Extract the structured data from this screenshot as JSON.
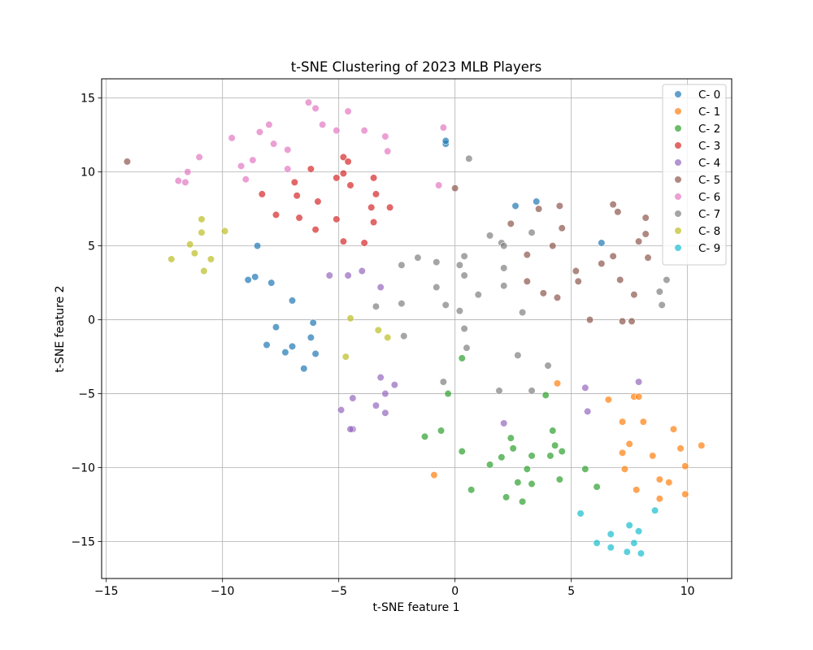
{
  "chart_data": {
    "type": "scatter",
    "title": "t-SNE Clustering of 2023 MLB Players",
    "xlabel": "t-SNE feature 1",
    "ylabel": "t-SNE feature 2",
    "xlim": [
      -15.2,
      11.9
    ],
    "ylim": [
      -17.5,
      16.3
    ],
    "xticks": [
      -15,
      -10,
      -5,
      0,
      5,
      10
    ],
    "yticks": [
      -15,
      -10,
      -5,
      0,
      5,
      10,
      15
    ],
    "grid": true,
    "legend_position": "top-right",
    "series": [
      {
        "name": "C- 0",
        "color": "#1f77b4",
        "points": [
          [
            -0.4,
            11.9
          ],
          [
            -0.4,
            12.1
          ],
          [
            2.6,
            7.7
          ],
          [
            3.5,
            8.0
          ],
          [
            6.3,
            5.2
          ],
          [
            -8.5,
            5.0
          ],
          [
            -8.9,
            2.7
          ],
          [
            -8.6,
            2.9
          ],
          [
            -7.9,
            2.5
          ],
          [
            -7.0,
            1.3
          ],
          [
            -7.7,
            -0.5
          ],
          [
            -6.1,
            -0.2
          ],
          [
            -8.1,
            -1.7
          ],
          [
            -7.0,
            -1.8
          ],
          [
            -7.3,
            -2.2
          ],
          [
            -6.2,
            -1.2
          ],
          [
            -6.0,
            -2.3
          ],
          [
            -6.5,
            -3.3
          ]
        ]
      },
      {
        "name": "C- 1",
        "color": "#ff7f0e",
        "points": [
          [
            4.4,
            -4.3
          ],
          [
            6.6,
            -5.4
          ],
          [
            7.7,
            -5.2
          ],
          [
            7.9,
            -5.2
          ],
          [
            7.2,
            -6.9
          ],
          [
            8.1,
            -6.9
          ],
          [
            9.4,
            -7.4
          ],
          [
            7.5,
            -8.4
          ],
          [
            7.2,
            -9.0
          ],
          [
            8.5,
            -9.2
          ],
          [
            9.7,
            -8.7
          ],
          [
            10.6,
            -8.5
          ],
          [
            7.3,
            -10.1
          ],
          [
            9.9,
            -9.9
          ],
          [
            8.8,
            -10.8
          ],
          [
            9.2,
            -11.0
          ],
          [
            7.8,
            -11.5
          ],
          [
            8.8,
            -12.1
          ],
          [
            9.9,
            -11.8
          ],
          [
            -0.9,
            -10.5
          ]
        ]
      },
      {
        "name": "C- 2",
        "color": "#2ca02c",
        "points": [
          [
            0.3,
            -2.6
          ],
          [
            -0.3,
            -5.0
          ],
          [
            3.9,
            -5.1
          ],
          [
            -1.3,
            -7.9
          ],
          [
            -0.6,
            -7.5
          ],
          [
            2.4,
            -8.0
          ],
          [
            2.5,
            -8.7
          ],
          [
            4.2,
            -7.5
          ],
          [
            4.3,
            -8.5
          ],
          [
            4.6,
            -8.9
          ],
          [
            0.3,
            -8.9
          ],
          [
            2.0,
            -9.3
          ],
          [
            3.3,
            -9.2
          ],
          [
            4.1,
            -9.2
          ],
          [
            1.5,
            -9.8
          ],
          [
            3.1,
            -10.1
          ],
          [
            5.6,
            -10.1
          ],
          [
            2.7,
            -11.0
          ],
          [
            3.3,
            -11.1
          ],
          [
            4.5,
            -10.8
          ],
          [
            0.7,
            -11.5
          ],
          [
            2.2,
            -12.0
          ],
          [
            2.9,
            -12.3
          ],
          [
            6.1,
            -11.3
          ]
        ]
      },
      {
        "name": "C- 3",
        "color": "#d62728",
        "points": [
          [
            -4.8,
            11.0
          ],
          [
            -4.6,
            10.7
          ],
          [
            -6.2,
            10.2
          ],
          [
            -4.8,
            9.9
          ],
          [
            -5.1,
            9.6
          ],
          [
            -3.5,
            9.6
          ],
          [
            -6.9,
            9.3
          ],
          [
            -4.5,
            9.1
          ],
          [
            -8.3,
            8.5
          ],
          [
            -6.8,
            8.4
          ],
          [
            -3.4,
            8.5
          ],
          [
            -5.9,
            8.0
          ],
          [
            -3.6,
            7.6
          ],
          [
            -2.8,
            7.6
          ],
          [
            -7.7,
            7.1
          ],
          [
            -6.7,
            6.9
          ],
          [
            -5.1,
            6.8
          ],
          [
            -3.5,
            6.6
          ],
          [
            -6.0,
            6.1
          ],
          [
            -4.8,
            5.3
          ],
          [
            -3.9,
            5.2
          ]
        ]
      },
      {
        "name": "C- 4",
        "color": "#9467bd",
        "points": [
          [
            -4.0,
            3.3
          ],
          [
            -5.4,
            3.0
          ],
          [
            -4.6,
            3.0
          ],
          [
            -3.2,
            2.2
          ],
          [
            -3.2,
            -3.9
          ],
          [
            -2.6,
            -4.4
          ],
          [
            -3.0,
            -5.0
          ],
          [
            -4.4,
            -5.3
          ],
          [
            -3.4,
            -5.8
          ],
          [
            -4.9,
            -6.1
          ],
          [
            -3.0,
            -6.3
          ],
          [
            -4.4,
            -7.4
          ],
          [
            -4.5,
            -7.4
          ],
          [
            2.1,
            -7.0
          ],
          [
            5.6,
            -4.6
          ],
          [
            5.7,
            -6.2
          ],
          [
            7.9,
            -4.2
          ]
        ]
      },
      {
        "name": "C- 5",
        "color": "#8c564b",
        "points": [
          [
            -14.1,
            10.7
          ],
          [
            0.0,
            8.9
          ],
          [
            4.5,
            7.7
          ],
          [
            6.8,
            7.8
          ],
          [
            7.0,
            7.3
          ],
          [
            3.6,
            7.5
          ],
          [
            2.4,
            6.5
          ],
          [
            8.2,
            6.9
          ],
          [
            4.6,
            6.2
          ],
          [
            8.2,
            5.8
          ],
          [
            7.9,
            5.3
          ],
          [
            4.2,
            5.0
          ],
          [
            3.1,
            4.4
          ],
          [
            6.8,
            4.3
          ],
          [
            8.3,
            4.2
          ],
          [
            6.3,
            3.8
          ],
          [
            5.2,
            3.3
          ],
          [
            7.1,
            2.7
          ],
          [
            3.1,
            2.6
          ],
          [
            5.3,
            2.6
          ],
          [
            3.8,
            1.8
          ],
          [
            7.7,
            1.7
          ],
          [
            4.4,
            1.5
          ],
          [
            5.8,
            0.0
          ],
          [
            7.2,
            -0.1
          ],
          [
            7.6,
            -0.1
          ]
        ]
      },
      {
        "name": "C- 6",
        "color": "#e377c2",
        "points": [
          [
            -6.3,
            14.7
          ],
          [
            -6.0,
            14.3
          ],
          [
            -4.6,
            14.1
          ],
          [
            -8.0,
            13.2
          ],
          [
            -5.7,
            13.2
          ],
          [
            -0.5,
            13.0
          ],
          [
            -8.4,
            12.7
          ],
          [
            -5.1,
            12.8
          ],
          [
            -3.9,
            12.8
          ],
          [
            -9.6,
            12.3
          ],
          [
            -3.0,
            12.4
          ],
          [
            -7.8,
            11.9
          ],
          [
            -7.2,
            11.5
          ],
          [
            -2.9,
            11.4
          ],
          [
            -11.0,
            11.0
          ],
          [
            -8.7,
            10.8
          ],
          [
            -9.2,
            10.4
          ],
          [
            -7.2,
            10.2
          ],
          [
            -11.5,
            10.0
          ],
          [
            -9.0,
            9.5
          ],
          [
            -11.9,
            9.4
          ],
          [
            -11.6,
            9.3
          ],
          [
            -0.7,
            9.1
          ]
        ]
      },
      {
        "name": "C- 7",
        "color": "#7f7f7f",
        "points": [
          [
            0.6,
            10.9
          ],
          [
            1.5,
            5.7
          ],
          [
            2.0,
            5.2
          ],
          [
            2.1,
            5.0
          ],
          [
            3.3,
            5.9
          ],
          [
            -1.6,
            4.2
          ],
          [
            0.4,
            4.3
          ],
          [
            -2.3,
            3.7
          ],
          [
            -0.8,
            3.9
          ],
          [
            0.2,
            3.7
          ],
          [
            2.1,
            3.5
          ],
          [
            0.4,
            3.0
          ],
          [
            9.1,
            2.7
          ],
          [
            -0.8,
            2.2
          ],
          [
            2.1,
            2.3
          ],
          [
            1.0,
            1.7
          ],
          [
            8.8,
            1.9
          ],
          [
            -2.3,
            1.1
          ],
          [
            -0.4,
            1.0
          ],
          [
            8.9,
            1.0
          ],
          [
            -3.4,
            0.9
          ],
          [
            0.2,
            0.6
          ],
          [
            2.9,
            0.5
          ],
          [
            0.4,
            -0.6
          ],
          [
            -2.2,
            -1.1
          ],
          [
            0.5,
            -1.9
          ],
          [
            2.7,
            -2.4
          ],
          [
            4.0,
            -3.1
          ],
          [
            -0.5,
            -4.2
          ],
          [
            3.3,
            -4.8
          ],
          [
            1.9,
            -4.8
          ]
        ]
      },
      {
        "name": "C- 8",
        "color": "#bcbd22",
        "points": [
          [
            -10.9,
            6.8
          ],
          [
            -9.9,
            6.0
          ],
          [
            -10.9,
            5.9
          ],
          [
            -11.4,
            5.1
          ],
          [
            -11.2,
            4.5
          ],
          [
            -12.2,
            4.1
          ],
          [
            -10.5,
            4.1
          ],
          [
            -10.8,
            3.3
          ],
          [
            -4.5,
            0.1
          ],
          [
            -3.3,
            -0.7
          ],
          [
            -2.9,
            -1.2
          ],
          [
            -4.7,
            -2.5
          ]
        ]
      },
      {
        "name": "C- 9",
        "color": "#17becf",
        "points": [
          [
            5.4,
            -13.1
          ],
          [
            8.6,
            -12.9
          ],
          [
            7.5,
            -13.9
          ],
          [
            7.9,
            -14.3
          ],
          [
            6.7,
            -14.5
          ],
          [
            6.1,
            -15.1
          ],
          [
            7.7,
            -15.1
          ],
          [
            6.7,
            -15.4
          ],
          [
            7.4,
            -15.7
          ],
          [
            8.0,
            -15.8
          ]
        ]
      }
    ]
  }
}
